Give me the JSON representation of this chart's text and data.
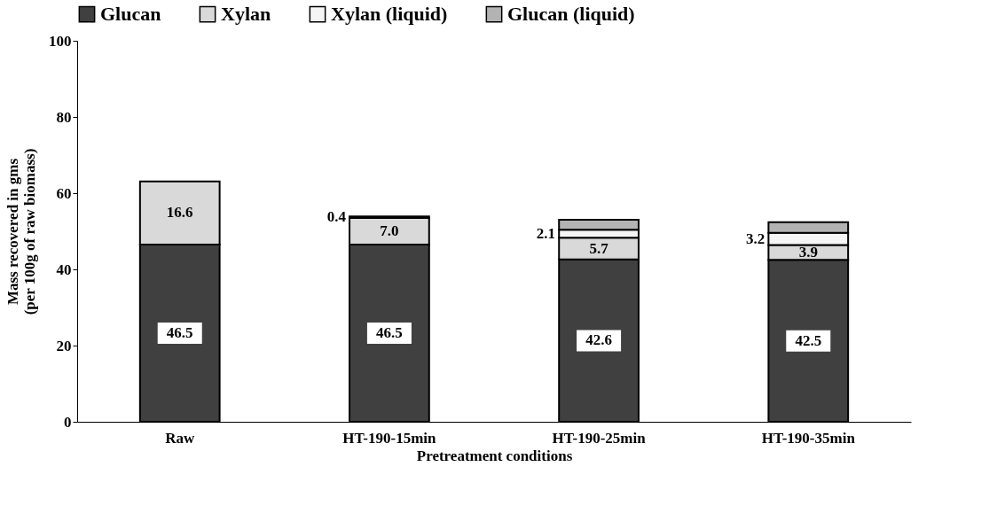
{
  "chart_data": {
    "type": "bar",
    "stacked": true,
    "xlabel": "Pretreatment conditions",
    "ylabel": "Mass recovered in gms\n(per 100g of raw biomass)",
    "categories": [
      "Raw",
      "HT-190-15min",
      "HT-190-25min",
      "HT-190-35min"
    ],
    "series": [
      {
        "name": "Glucan",
        "color": "#404040",
        "values": [
          46.5,
          46.5,
          42.6,
          42.5
        ],
        "value_labels": [
          "46.5",
          "46.5",
          "42.6",
          "42.5"
        ]
      },
      {
        "name": "Xylan",
        "color": "#d9d9d9",
        "values": [
          16.6,
          7.0,
          5.7,
          3.9
        ],
        "value_labels": [
          "16.6",
          "7.0",
          "5.7",
          "3.9"
        ]
      },
      {
        "name": "Xylan (liquid)",
        "color": "#f5f5f5",
        "values": [
          null,
          0.4,
          2.1,
          3.2
        ],
        "value_labels": [
          null,
          "0.4",
          "2.1",
          "3.2"
        ]
      },
      {
        "name": "Glucan (liquid)",
        "color": "#b3b3b3",
        "values": [
          null,
          null,
          2.6,
          2.8
        ]
      }
    ],
    "ylim": [
      0,
      100
    ],
    "yticks": [
      0,
      20,
      40,
      60,
      80,
      100
    ],
    "grid": false,
    "legend": "top"
  }
}
